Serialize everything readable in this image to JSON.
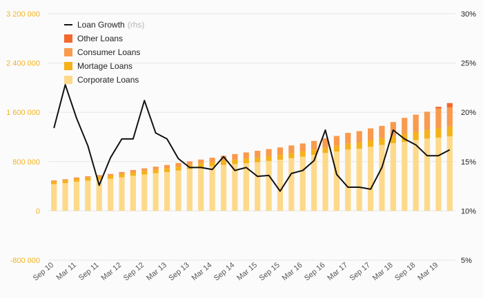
{
  "chart_data": {
    "type": "bar",
    "stacked": true,
    "categories": [
      "Sep 10",
      "Dec 10",
      "Mar 11",
      "Jun 11",
      "Sep 11",
      "Dec 11",
      "Mar 12",
      "Jun 12",
      "Sep 12",
      "Dec 12",
      "Mar 13",
      "Jun 13",
      "Sep 13",
      "Dec 13",
      "Mar 14",
      "Jun 14",
      "Sep 14",
      "Dec 14",
      "Mar 15",
      "Jun 15",
      "Sep 15",
      "Dec 15",
      "Mar 16",
      "Jun 16",
      "Sep 16",
      "Dec 16",
      "Mar 17",
      "Jun 17",
      "Sep 17",
      "Dec 17",
      "Mar 18",
      "Jun 18",
      "Sep 18",
      "Dec 18",
      "Mar 19",
      "Jun 19"
    ],
    "x_tick_labels": [
      "Sep 10",
      "Mar 11",
      "Sep 11",
      "Mar 12",
      "Sep 12",
      "Mar 13",
      "Sep 13",
      "Mar 14",
      "Sep 14",
      "Mar 15",
      "Sep 15",
      "Mar 16",
      "Sep 16",
      "Mar 17",
      "Sep 17",
      "Mar 18",
      "Sep 18",
      "Mar 19"
    ],
    "series": [
      {
        "name": "Corporate Loans",
        "color": "#fdd98a",
        "axis": "left",
        "values": [
          435000,
          450000,
          475000,
          490000,
          505000,
          520000,
          545000,
          570000,
          590000,
          610000,
          630000,
          655000,
          680000,
          705000,
          725000,
          745000,
          760000,
          775000,
          790000,
          810000,
          830000,
          855000,
          880000,
          910000,
          940000,
          965000,
          995000,
          1010000,
          1040000,
          1070000,
          1100000,
          1120000,
          1150000,
          1175000,
          1190000,
          1210000
        ]
      },
      {
        "name": "Mortage Loans",
        "color": "#f5b21b",
        "axis": "left",
        "values": [
          40000,
          42000,
          44000,
          46000,
          48000,
          50000,
          52000,
          54000,
          56000,
          58000,
          60000,
          62000,
          64000,
          66000,
          68000,
          70000,
          72000,
          74000,
          76000,
          78000,
          80000,
          82000,
          84000,
          86000,
          88000,
          92000,
          96000,
          100000,
          104000,
          110000,
          118000,
          125000,
          132000,
          140000,
          150000,
          160000
        ]
      },
      {
        "name": "Consumer Loans",
        "color": "#f99a4d",
        "axis": "left",
        "values": [
          20000,
          22000,
          24000,
          26000,
          28000,
          30000,
          35000,
          40000,
          45000,
          50000,
          55000,
          60000,
          60000,
          62000,
          70000,
          80000,
          90000,
          100000,
          110000,
          115000,
          120000,
          125000,
          130000,
          140000,
          150000,
          160000,
          175000,
          185000,
          195000,
          200000,
          225000,
          265000,
          280000,
          295000,
          320000,
          310000
        ]
      },
      {
        "name": "Other Loans",
        "color": "#f2682d",
        "axis": "left",
        "values": [
          0,
          0,
          0,
          0,
          0,
          0,
          0,
          0,
          0,
          0,
          0,
          0,
          0,
          0,
          0,
          0,
          0,
          0,
          0,
          0,
          0,
          0,
          0,
          0,
          0,
          0,
          0,
          0,
          0,
          0,
          0,
          0,
          0,
          0,
          30000,
          70000
        ]
      },
      {
        "name": "Loan Growth",
        "type": "line",
        "axis": "right",
        "color": "#111111",
        "values": [
          0.184,
          0.228,
          0.194,
          0.166,
          0.126,
          0.154,
          0.173,
          0.173,
          0.212,
          0.179,
          0.173,
          0.153,
          0.144,
          0.144,
          0.142,
          0.155,
          0.141,
          0.144,
          0.135,
          0.136,
          0.12,
          0.138,
          0.141,
          0.151,
          0.182,
          0.137,
          0.124,
          0.124,
          0.122,
          0.144,
          0.182,
          0.173,
          0.167,
          0.156,
          0.156,
          0.162
        ]
      }
    ],
    "y_left": {
      "ylim": [
        -800000,
        3200000
      ],
      "ticks": [
        -800000,
        0,
        800000,
        1600000,
        2400000,
        3200000
      ],
      "tick_labels": [
        "-800 000",
        "0",
        "800 000",
        "1 600 000",
        "2 400 000",
        "3 200 000"
      ]
    },
    "y_right": {
      "ylim": [
        0.05,
        0.3
      ],
      "ticks": [
        0.05,
        0.1,
        0.15,
        0.2,
        0.25,
        0.3
      ],
      "tick_labels": [
        "5%",
        "10%",
        "15%",
        "20%",
        "25%",
        "30%"
      ]
    },
    "legend": {
      "placement": "top-left",
      "entries": [
        {
          "label": "Loan Growth",
          "note": "(rhs)",
          "kind": "line",
          "color": "#111111"
        },
        {
          "label": "Other Loans",
          "kind": "box",
          "color": "#f2682d"
        },
        {
          "label": "Consumer Loans",
          "kind": "box",
          "color": "#f99a4d"
        },
        {
          "label": "Mortage Loans",
          "kind": "box",
          "color": "#f5b21b"
        },
        {
          "label": "Corporate Loans",
          "kind": "box",
          "color": "#fdd98a"
        }
      ]
    },
    "grid": true,
    "colors": {
      "left_axis_text": "#f5b21b",
      "right_axis_text": "#222222",
      "grid": "#e6e6e6"
    }
  }
}
